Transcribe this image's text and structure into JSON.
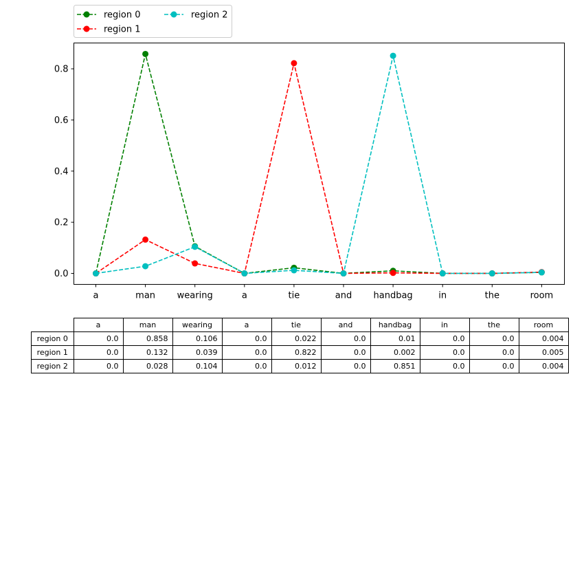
{
  "chart_data": {
    "type": "line",
    "categories": [
      "a",
      "man",
      "wearing",
      "a",
      "tie",
      "and",
      "handbag",
      "in",
      "the",
      "room"
    ],
    "series": [
      {
        "name": "region 0",
        "color": "#008000",
        "line_style": "dashed",
        "marker": "circle",
        "values": [
          0.0,
          0.858,
          0.106,
          0.0,
          0.022,
          0.0,
          0.01,
          0.0,
          0.0,
          0.004
        ]
      },
      {
        "name": "region 1",
        "color": "#ff0000",
        "line_style": "dashed",
        "marker": "circle",
        "values": [
          0.0,
          0.132,
          0.039,
          0.0,
          0.822,
          0.0,
          0.002,
          0.0,
          0.0,
          0.005
        ]
      },
      {
        "name": "region 2",
        "color": "#00bfbf",
        "line_style": "dashed",
        "marker": "circle",
        "values": [
          0.0,
          0.028,
          0.104,
          0.0,
          0.012,
          0.0,
          0.851,
          0.0,
          0.0,
          0.004
        ]
      }
    ],
    "ylim": [
      -0.043,
      0.901
    ],
    "yticks": [
      "0.0",
      "0.2",
      "0.4",
      "0.6",
      "0.8"
    ],
    "grid": false,
    "legend_placement": "above plot, left, two columns"
  },
  "table": {
    "columns": [
      "a",
      "man",
      "wearing",
      "a",
      "tie",
      "and",
      "handbag",
      "in",
      "the",
      "room"
    ],
    "rows": [
      {
        "label": "region 0",
        "cells": [
          "0.0",
          "0.858",
          "0.106",
          "0.0",
          "0.022",
          "0.0",
          "0.01",
          "0.0",
          "0.0",
          "0.004"
        ]
      },
      {
        "label": "region 1",
        "cells": [
          "0.0",
          "0.132",
          "0.039",
          "0.0",
          "0.822",
          "0.0",
          "0.002",
          "0.0",
          "0.0",
          "0.005"
        ]
      },
      {
        "label": "region 2",
        "cells": [
          "0.0",
          "0.028",
          "0.104",
          "0.0",
          "0.012",
          "0.0",
          "0.851",
          "0.0",
          "0.0",
          "0.004"
        ]
      }
    ]
  }
}
